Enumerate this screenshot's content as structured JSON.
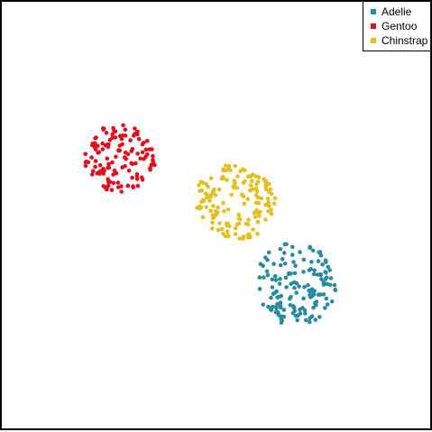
{
  "chart_data": {
    "type": "scatter",
    "title": "",
    "xlabel": "",
    "ylabel": "",
    "xlim": [
      0,
      100
    ],
    "ylim": [
      0,
      100
    ],
    "axes_visible": false,
    "grid": false,
    "legend_position": "top-right",
    "series": [
      {
        "name": "Adelie",
        "color": "#2a8aa0",
        "n": 150,
        "center": [
          67.8,
          34.2
        ],
        "spread": [
          9.5,
          9.8
        ]
      },
      {
        "name": "Gentoo",
        "color": "#e0101e",
        "n": 130,
        "center": [
          27.4,
          63.6
        ],
        "spread": [
          8.2,
          8.0
        ]
      },
      {
        "name": "Chinstrap",
        "color": "#e3bf21",
        "n": 150,
        "center": [
          54.0,
          53.4
        ],
        "spread": [
          9.6,
          8.8
        ]
      }
    ]
  }
}
